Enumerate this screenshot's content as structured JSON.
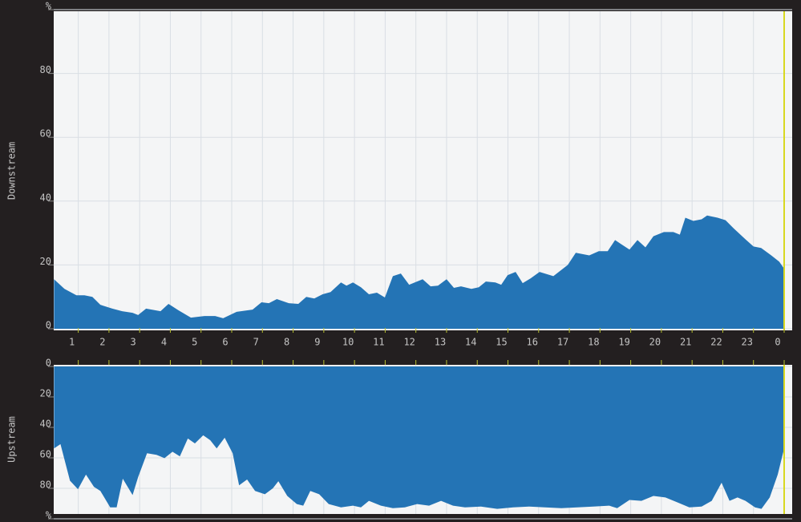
{
  "chart_data": [
    {
      "type": "area",
      "y_label": "Downstream",
      "color": "#2474b5",
      "grid": true,
      "xlim": [
        0.2,
        24
      ],
      "ylim": [
        0,
        100
      ],
      "xticks": [
        1,
        2,
        3,
        4,
        5,
        6,
        7,
        8,
        9,
        10,
        11,
        12,
        13,
        14,
        15,
        16,
        17,
        18,
        19,
        20,
        21,
        22,
        23,
        {
          "value": 24,
          "label": "0"
        }
      ],
      "yticks": [
        0,
        20,
        40,
        60,
        80,
        {
          "value": 100,
          "label": "%"
        }
      ],
      "x": [
        0.21,
        0.55,
        0.94,
        1.2,
        1.46,
        1.72,
        2.11,
        2.43,
        2.77,
        2.95,
        3.21,
        3.68,
        3.94,
        4.26,
        4.67,
        5.12,
        5.46,
        5.72,
        6.16,
        6.68,
        6.97,
        7.21,
        7.47,
        7.86,
        8.17,
        8.43,
        8.69,
        8.96,
        9.22,
        9.56,
        9.74,
        9.95,
        10.21,
        10.47,
        10.73,
        10.99,
        11.25,
        11.51,
        11.78,
        12.22,
        12.48,
        12.72,
        13.0,
        13.24,
        13.47,
        13.81,
        14.05,
        14.28,
        14.59,
        14.78,
        14.99,
        15.25,
        15.48,
        15.74,
        16.03,
        16.48,
        16.95,
        17.21,
        17.65,
        17.96,
        18.25,
        18.49,
        18.69,
        18.96,
        19.22,
        19.48,
        19.74,
        20.08,
        20.39,
        20.6,
        20.78,
        21.04,
        21.31,
        21.49,
        21.83,
        22.09,
        22.35,
        22.74,
        23.0,
        23.25,
        23.58,
        23.84,
        24.0
      ],
      "values": [
        15.5,
        12.5,
        10.5,
        10.5,
        10,
        7.5,
        6.3,
        5.5,
        5,
        4.3,
        6.3,
        5.5,
        7.8,
        5.8,
        3.5,
        4,
        4,
        3.3,
        5.3,
        6,
        8.3,
        8,
        9.3,
        8,
        7.8,
        10,
        9.5,
        10.8,
        11.5,
        14.5,
        13.5,
        14.5,
        13,
        10.8,
        11.3,
        9.8,
        16.5,
        17.3,
        13.8,
        15.5,
        13.3,
        13.5,
        15.5,
        12.8,
        13.3,
        12.5,
        13,
        14.8,
        14.5,
        13.8,
        16.8,
        17.8,
        14.3,
        15.8,
        17.8,
        16.5,
        20,
        23.8,
        23,
        24.3,
        24.3,
        27.8,
        26.5,
        24.8,
        27.8,
        25.5,
        29,
        30.3,
        30.3,
        29.5,
        34.8,
        33.8,
        34.3,
        35.5,
        34.8,
        34,
        31.5,
        28,
        25.8,
        25.3,
        23,
        21,
        18.8
      ]
    },
    {
      "type": "area",
      "y_label": "Upstream",
      "color": "#2474b5",
      "grid": true,
      "xlim": [
        0.2,
        24
      ],
      "ylim": [
        100,
        0
      ],
      "xticks": [
        1,
        2,
        3,
        4,
        5,
        6,
        7,
        8,
        9,
        10,
        11,
        12,
        13,
        14,
        15,
        16,
        17,
        18,
        19,
        20,
        21,
        22,
        23,
        24
      ],
      "yticks": [
        0,
        20,
        40,
        60,
        80,
        {
          "value": 100,
          "label": "%"
        }
      ],
      "x": [
        0.21,
        0.42,
        0.73,
        0.99,
        1.25,
        1.51,
        1.72,
        2.04,
        2.25,
        2.45,
        2.77,
        2.95,
        3.24,
        3.55,
        3.81,
        4.07,
        4.31,
        4.57,
        4.8,
        5.07,
        5.3,
        5.51,
        5.77,
        6.03,
        6.24,
        6.5,
        6.76,
        7.08,
        7.34,
        7.52,
        7.81,
        8.12,
        8.33,
        8.56,
        8.85,
        9.16,
        9.56,
        9.95,
        10.21,
        10.47,
        10.86,
        11.25,
        11.64,
        12.04,
        12.43,
        12.82,
        13.21,
        13.6,
        14.12,
        14.65,
        15.17,
        15.69,
        16.21,
        16.74,
        17.26,
        17.78,
        18.3,
        18.56,
        18.96,
        19.35,
        19.74,
        20.13,
        20.52,
        20.91,
        21.31,
        21.64,
        21.96,
        22.22,
        22.48,
        22.74,
        23.05,
        23.26,
        23.53,
        23.79,
        24.0
      ],
      "values": [
        53.8,
        51,
        75,
        80.6,
        71,
        79,
        81.7,
        92.5,
        92.5,
        73.7,
        84.4,
        72.6,
        57,
        58,
        60.2,
        56,
        59,
        47.3,
        50.5,
        45.2,
        48.4,
        53.8,
        46.8,
        57,
        78,
        74.2,
        81.7,
        83.9,
        80,
        75.3,
        85,
        90.3,
        91.4,
        81.7,
        83.9,
        90.3,
        92.5,
        91.4,
        92.5,
        88.2,
        91.4,
        93,
        92.5,
        90.3,
        91.4,
        88.2,
        91.4,
        92.5,
        92,
        93.5,
        92.5,
        92,
        92.5,
        93,
        92.5,
        92,
        91.4,
        93,
        87.6,
        88.2,
        85,
        86,
        89.2,
        92.5,
        92,
        88.2,
        76.3,
        88.2,
        86,
        88.2,
        92.5,
        93.5,
        86,
        71,
        53.8
      ]
    }
  ]
}
